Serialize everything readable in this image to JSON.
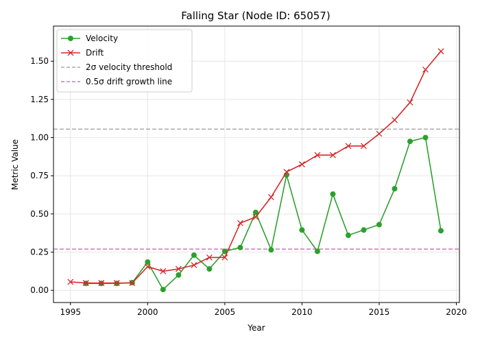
{
  "chart_data": {
    "type": "line",
    "title": "Falling Star (Node ID: 65057)",
    "xlabel": "Year",
    "ylabel": "Metric Value",
    "xlim": [
      1993.9,
      2020.2
    ],
    "ylim": [
      -0.08,
      1.73
    ],
    "x_ticks": [
      1995,
      2000,
      2005,
      2010,
      2015,
      2020
    ],
    "y_ticks": [
      0.0,
      0.25,
      0.5,
      0.75,
      1.0,
      1.25,
      1.5
    ],
    "grid": true,
    "legend_position": "upper-left",
    "series": [
      {
        "name": "Velocity",
        "color": "#2ca02c",
        "marker": "circle",
        "x": [
          1996,
          1997,
          1998,
          1999,
          2000,
          2001,
          2002,
          2003,
          2004,
          2005,
          2006,
          2007,
          2008,
          2009,
          2010,
          2011,
          2012,
          2013,
          2014,
          2015,
          2016,
          2017,
          2018,
          2019
        ],
        "values": [
          0.045,
          0.045,
          0.045,
          0.05,
          0.185,
          0.005,
          0.1,
          0.23,
          0.14,
          0.255,
          0.28,
          0.51,
          0.265,
          0.755,
          0.395,
          0.255,
          0.63,
          0.36,
          0.395,
          0.43,
          0.665,
          0.975,
          1.0,
          0.39
        ]
      },
      {
        "name": "Drift",
        "color": "#d62728",
        "marker": "x",
        "x": [
          1995,
          1996,
          1997,
          1998,
          1999,
          2000,
          2001,
          2002,
          2003,
          2004,
          2005,
          2006,
          2007,
          2008,
          2009,
          2010,
          2011,
          2012,
          2013,
          2014,
          2015,
          2016,
          2017,
          2018,
          2019
        ],
        "values": [
          0.055,
          0.048,
          0.048,
          0.048,
          0.048,
          0.155,
          0.125,
          0.14,
          0.165,
          0.215,
          0.215,
          0.44,
          0.48,
          0.61,
          0.775,
          0.825,
          0.885,
          0.885,
          0.945,
          0.945,
          1.025,
          1.115,
          1.23,
          1.445,
          1.565
        ]
      }
    ],
    "reference_lines": [
      {
        "name": "2σ velocity threshold",
        "y": 1.055,
        "color": "#aaaaaa",
        "style": "dashed"
      },
      {
        "name": "0.5σ drift growth line",
        "y": 0.27,
        "color": "#c57bba",
        "style": "dashed"
      }
    ]
  }
}
